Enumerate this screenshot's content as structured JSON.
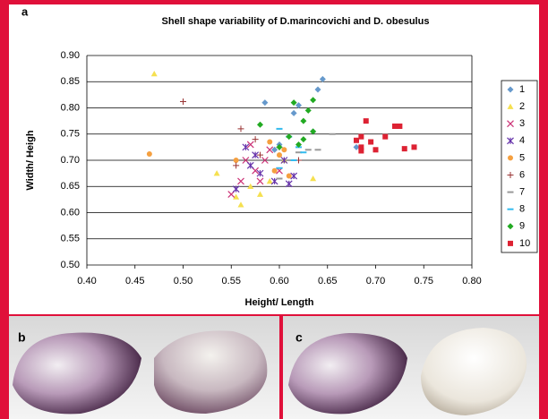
{
  "chart_data": {
    "type": "scatter",
    "title": "Shell shape variability of D.marincovichi and D. obesulus",
    "panel_labels": [
      "a",
      "b",
      "c"
    ],
    "xlabel": "Height/ Length",
    "ylabel": "Width/ Heigh",
    "xlim": [
      0.4,
      0.8
    ],
    "ylim": [
      0.5,
      0.9
    ],
    "xticks": [
      {
        "value": 0.4,
        "label": "0.40"
      },
      {
        "value": 0.45,
        "label": "0.45"
      },
      {
        "value": 0.5,
        "label": "0.50"
      },
      {
        "value": 0.55,
        "label": "0.55"
      },
      {
        "value": 0.6,
        "label": "0.60"
      },
      {
        "value": 0.65,
        "label": "0.65"
      },
      {
        "value": 0.7,
        "label": "0.70"
      },
      {
        "value": 0.75,
        "label": "0.75"
      },
      {
        "value": 0.8,
        "label": "0.80"
      }
    ],
    "yticks": [
      {
        "value": 0.5,
        "label": "0.50"
      },
      {
        "value": 0.55,
        "label": "0.55"
      },
      {
        "value": 0.6,
        "label": "0.60"
      },
      {
        "value": 0.65,
        "label": "0.65"
      },
      {
        "value": 0.7,
        "label": "0.70"
      },
      {
        "value": 0.75,
        "label": "0.75"
      },
      {
        "value": 0.8,
        "label": "0.80"
      },
      {
        "value": 0.85,
        "label": "0.85"
      },
      {
        "value": 0.9,
        "label": "0.90"
      }
    ],
    "grid": true,
    "legend": "right",
    "series": [
      {
        "name": "1",
        "color": "#6699cc",
        "marker": "diamond",
        "x": [
          0.645,
          0.64,
          0.585,
          0.62,
          0.615,
          0.635,
          0.68,
          0.6,
          0.595
        ],
        "values": [
          0.855,
          0.835,
          0.81,
          0.805,
          0.79,
          0.755,
          0.725,
          0.73,
          0.72
        ]
      },
      {
        "name": "2",
        "color": "#f5e050",
        "marker": "triangle",
        "x": [
          0.47,
          0.535,
          0.555,
          0.56,
          0.58,
          0.59,
          0.605,
          0.635,
          0.57
        ],
        "values": [
          0.865,
          0.675,
          0.63,
          0.615,
          0.635,
          0.66,
          0.7,
          0.665,
          0.65
        ]
      },
      {
        "name": "3",
        "color": "#cc3377",
        "marker": "x",
        "x": [
          0.55,
          0.565,
          0.57,
          0.575,
          0.58,
          0.585,
          0.59,
          0.6,
          0.56
        ],
        "values": [
          0.635,
          0.7,
          0.73,
          0.68,
          0.66,
          0.7,
          0.72,
          0.68,
          0.66
        ]
      },
      {
        "name": "4",
        "color": "#6633aa",
        "marker": "asterisk",
        "x": [
          0.565,
          0.57,
          0.575,
          0.58,
          0.595,
          0.61,
          0.615,
          0.605,
          0.555
        ],
        "values": [
          0.725,
          0.69,
          0.71,
          0.675,
          0.66,
          0.655,
          0.67,
          0.7,
          0.645
        ]
      },
      {
        "name": "5",
        "color": "#f5a040",
        "marker": "circle",
        "x": [
          0.465,
          0.555,
          0.59,
          0.595,
          0.6,
          0.61,
          0.605
        ],
        "values": [
          0.712,
          0.7,
          0.735,
          0.68,
          0.71,
          0.67,
          0.72
        ]
      },
      {
        "name": "6",
        "color": "#993333",
        "marker": "plus",
        "x": [
          0.5,
          0.56,
          0.575,
          0.555,
          0.58,
          0.6,
          0.62
        ],
        "values": [
          0.812,
          0.76,
          0.74,
          0.69,
          0.71,
          0.725,
          0.7
        ]
      },
      {
        "name": "7",
        "color": "#999999",
        "marker": "dash",
        "x": [
          0.59,
          0.62,
          0.63,
          0.6,
          0.655,
          0.64
        ],
        "values": [
          0.7,
          0.715,
          0.72,
          0.665,
          0.75,
          0.72
        ]
      },
      {
        "name": "8",
        "color": "#33bbee",
        "marker": "dash",
        "x": [
          0.6,
          0.61,
          0.62,
          0.625,
          0.615,
          0.6
        ],
        "values": [
          0.76,
          0.745,
          0.725,
          0.715,
          0.7,
          0.685
        ]
      },
      {
        "name": "9",
        "color": "#22aa22",
        "marker": "diamond",
        "x": [
          0.58,
          0.615,
          0.635,
          0.63,
          0.625,
          0.625,
          0.635,
          0.61,
          0.62,
          0.6
        ],
        "values": [
          0.768,
          0.81,
          0.815,
          0.795,
          0.775,
          0.74,
          0.755,
          0.745,
          0.73,
          0.725
        ]
      },
      {
        "name": "10",
        "color": "#dd2233",
        "marker": "square",
        "x": [
          0.685,
          0.69,
          0.695,
          0.685,
          0.7,
          0.71,
          0.72,
          0.725,
          0.73,
          0.74,
          0.68,
          0.685
        ],
        "values": [
          0.745,
          0.775,
          0.735,
          0.725,
          0.72,
          0.745,
          0.765,
          0.765,
          0.722,
          0.725,
          0.738,
          0.718
        ]
      }
    ]
  }
}
